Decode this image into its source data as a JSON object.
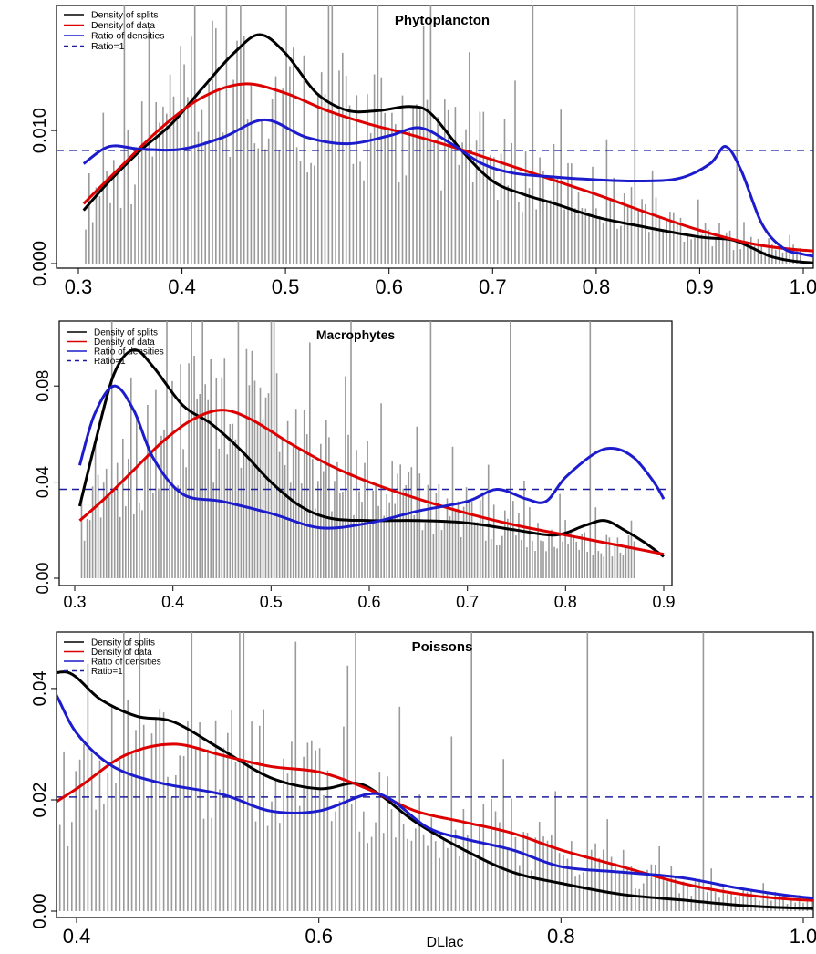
{
  "chart_data": [
    {
      "type": "line",
      "title": "Phytoplancton",
      "xlabel": "",
      "ylabel": "",
      "xlim": [
        0.3,
        1.05
      ],
      "ylim": [
        0.0,
        0.0185
      ],
      "x_ticks": [
        "0.3",
        "0.4",
        "0.5",
        "0.6",
        "0.7",
        "0.8",
        "0.9",
        "1.0"
      ],
      "y_ticks": [
        "0.000",
        "0.010"
      ],
      "y_tick_values": [
        0.0,
        0.01
      ],
      "x_tick_values": [
        0.3,
        0.4,
        0.5,
        0.6,
        0.7,
        0.8,
        0.9,
        1.0
      ],
      "legend": [
        "Density of splits",
        "Density of data",
        "Ratio of densities",
        "Ratio=1"
      ],
      "reference_line": 0.0085,
      "series": [
        {
          "name": "Density of splits",
          "color": "#000000",
          "x": [
            0.305,
            0.33,
            0.36,
            0.39,
            0.42,
            0.45,
            0.475,
            0.5,
            0.53,
            0.56,
            0.59,
            0.62,
            0.64,
            0.67,
            0.7,
            0.73,
            0.76,
            0.8,
            0.85,
            0.9,
            0.93,
            0.95,
            0.97,
            1.0,
            1.045
          ],
          "y": [
            0.004,
            0.0062,
            0.0085,
            0.0105,
            0.0132,
            0.0158,
            0.0172,
            0.0158,
            0.0128,
            0.0115,
            0.0115,
            0.0118,
            0.0113,
            0.0085,
            0.0062,
            0.0052,
            0.0045,
            0.0035,
            0.0027,
            0.002,
            0.0018,
            0.0012,
            0.0005,
            0.0001,
            0.0
          ]
        },
        {
          "name": "Density of data",
          "color": "#dd0000",
          "x": [
            0.305,
            0.34,
            0.38,
            0.42,
            0.46,
            0.5,
            0.54,
            0.58,
            0.62,
            0.66,
            0.7,
            0.75,
            0.8,
            0.85,
            0.9,
            0.95,
            1.0,
            1.045
          ],
          "y": [
            0.0045,
            0.0072,
            0.0102,
            0.0125,
            0.0135,
            0.0128,
            0.0115,
            0.0105,
            0.0097,
            0.0088,
            0.0078,
            0.0065,
            0.0052,
            0.0038,
            0.0025,
            0.0015,
            0.001,
            0.0009
          ]
        },
        {
          "name": "Ratio of densities",
          "color": "#1c1ccc",
          "x": [
            0.305,
            0.33,
            0.36,
            0.4,
            0.44,
            0.48,
            0.52,
            0.56,
            0.6,
            0.63,
            0.66,
            0.69,
            0.72,
            0.76,
            0.8,
            0.84,
            0.88,
            0.91,
            0.925,
            0.94,
            0.96,
            0.98,
            1.0,
            1.045
          ],
          "y": [
            0.0075,
            0.0088,
            0.0086,
            0.0086,
            0.0095,
            0.0108,
            0.0095,
            0.009,
            0.0096,
            0.0102,
            0.009,
            0.0075,
            0.0068,
            0.0065,
            0.0063,
            0.0062,
            0.0064,
            0.0075,
            0.0088,
            0.007,
            0.003,
            0.0012,
            0.0007,
            0.0001
          ]
        }
      ]
    },
    {
      "type": "line",
      "title": "Macrophytes",
      "xlabel": "",
      "ylabel": "",
      "xlim": [
        0.3,
        0.9
      ],
      "ylim": [
        0.0,
        0.104
      ],
      "x_ticks": [
        "0.3",
        "0.4",
        "0.5",
        "0.6",
        "0.7",
        "0.8",
        "0.9"
      ],
      "y_ticks": [
        "0.00",
        "0.04",
        "0.08"
      ],
      "y_tick_values": [
        0.0,
        0.04,
        0.08
      ],
      "x_tick_values": [
        0.3,
        0.4,
        0.5,
        0.6,
        0.7,
        0.8,
        0.9
      ],
      "legend": [
        "Density of splits",
        "Density of data",
        "Ratio of densities",
        "Ratio=1"
      ],
      "reference_line": 0.037,
      "series": [
        {
          "name": "Density of splits",
          "color": "#000000",
          "x": [
            0.305,
            0.32,
            0.34,
            0.36,
            0.38,
            0.41,
            0.44,
            0.47,
            0.5,
            0.53,
            0.56,
            0.6,
            0.65,
            0.7,
            0.75,
            0.79,
            0.82,
            0.84,
            0.86,
            0.88,
            0.9
          ],
          "y": [
            0.03,
            0.055,
            0.085,
            0.095,
            0.088,
            0.072,
            0.064,
            0.053,
            0.04,
            0.03,
            0.025,
            0.024,
            0.024,
            0.023,
            0.02,
            0.018,
            0.022,
            0.024,
            0.02,
            0.015,
            0.009
          ]
        },
        {
          "name": "Density of data",
          "color": "#dd0000",
          "x": [
            0.305,
            0.33,
            0.36,
            0.39,
            0.42,
            0.45,
            0.48,
            0.52,
            0.56,
            0.6,
            0.65,
            0.7,
            0.75,
            0.8,
            0.85,
            0.9
          ],
          "y": [
            0.024,
            0.033,
            0.045,
            0.057,
            0.066,
            0.07,
            0.066,
            0.056,
            0.047,
            0.04,
            0.033,
            0.027,
            0.022,
            0.018,
            0.014,
            0.01
          ]
        },
        {
          "name": "Ratio of densities",
          "color": "#1c1ccc",
          "x": [
            0.305,
            0.32,
            0.34,
            0.36,
            0.38,
            0.41,
            0.45,
            0.5,
            0.55,
            0.6,
            0.65,
            0.7,
            0.73,
            0.76,
            0.78,
            0.8,
            0.83,
            0.85,
            0.87,
            0.89,
            0.9
          ],
          "y": [
            0.047,
            0.068,
            0.08,
            0.07,
            0.05,
            0.035,
            0.032,
            0.027,
            0.021,
            0.023,
            0.028,
            0.032,
            0.037,
            0.033,
            0.032,
            0.042,
            0.052,
            0.054,
            0.05,
            0.04,
            0.033
          ]
        }
      ]
    },
    {
      "type": "line",
      "title": "Poissons",
      "xlabel": "DLlac",
      "ylabel": "",
      "xlim": [
        0.3,
        1.05
      ],
      "ylim": [
        0.0,
        0.049
      ],
      "x_ticks": [
        "0.4",
        "0.6",
        "0.8",
        "1.0"
      ],
      "y_ticks": [
        "0.00",
        "0.02",
        "0.04"
      ],
      "y_tick_values": [
        0.0,
        0.02,
        0.04
      ],
      "x_tick_values": [
        0.4,
        0.6,
        0.8,
        1.0
      ],
      "legend": [
        "Density of splits",
        "Density of data",
        "Ratio of densities",
        "Ratio=1"
      ],
      "reference_line": 0.0205,
      "series": [
        {
          "name": "Density of splits",
          "color": "#000000",
          "x": [
            0.305,
            0.33,
            0.36,
            0.39,
            0.42,
            0.45,
            0.48,
            0.52,
            0.56,
            0.6,
            0.63,
            0.65,
            0.68,
            0.72,
            0.76,
            0.8,
            0.85,
            0.9,
            0.95,
            1.0,
            1.045
          ],
          "y": [
            0.008,
            0.02,
            0.038,
            0.043,
            0.038,
            0.035,
            0.034,
            0.029,
            0.024,
            0.022,
            0.023,
            0.021,
            0.016,
            0.011,
            0.007,
            0.005,
            0.003,
            0.002,
            0.001,
            0.0005,
            0.0004
          ]
        },
        {
          "name": "Density of data",
          "color": "#dd0000",
          "x": [
            0.305,
            0.35,
            0.4,
            0.44,
            0.48,
            0.52,
            0.56,
            0.6,
            0.64,
            0.68,
            0.72,
            0.76,
            0.8,
            0.85,
            0.9,
            0.95,
            1.0,
            1.045
          ],
          "y": [
            0.008,
            0.015,
            0.022,
            0.028,
            0.03,
            0.028,
            0.026,
            0.025,
            0.022,
            0.018,
            0.016,
            0.014,
            0.011,
            0.008,
            0.005,
            0.003,
            0.002,
            0.002
          ]
        },
        {
          "name": "Ratio of densities",
          "color": "#1c1ccc",
          "x": [
            0.305,
            0.33,
            0.36,
            0.38,
            0.4,
            0.43,
            0.47,
            0.52,
            0.56,
            0.6,
            0.64,
            0.66,
            0.69,
            0.72,
            0.76,
            0.8,
            0.85,
            0.9,
            0.95,
            1.0,
            1.045
          ],
          "y": [
            0.02,
            0.038,
            0.044,
            0.04,
            0.032,
            0.026,
            0.023,
            0.021,
            0.018,
            0.018,
            0.021,
            0.02,
            0.015,
            0.013,
            0.011,
            0.008,
            0.007,
            0.006,
            0.004,
            0.0025,
            0.002
          ]
        }
      ]
    }
  ]
}
